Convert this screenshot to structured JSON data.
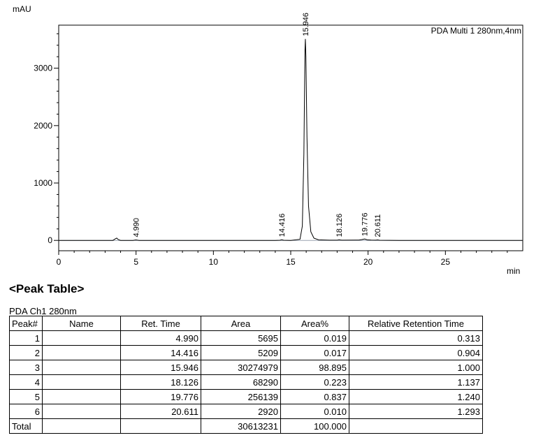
{
  "chart_data": {
    "type": "line",
    "title": "",
    "legend": "PDA Multi 1 280nm,4nm",
    "ylabel": "mAU",
    "xlabel": "min",
    "xlim": [
      0,
      30
    ],
    "ylim": [
      -180,
      3750
    ],
    "x_ticks": [
      0,
      5,
      10,
      15,
      20,
      25
    ],
    "y_ticks": [
      0,
      1000,
      2000,
      3000
    ],
    "grid": false,
    "legend_position": "top-right",
    "series": [
      {
        "x": [
          0,
          3.5,
          3.68,
          3.75,
          3.85,
          4.0,
          4.8,
          4.99,
          5.2,
          5.6,
          7.0,
          10.0,
          14.0,
          14.3,
          14.416,
          14.55,
          15.0,
          15.6,
          15.75,
          15.85,
          15.92,
          15.946,
          15.98,
          16.05,
          16.15,
          16.3,
          16.5,
          16.8,
          17.5,
          18.0,
          18.126,
          18.3,
          19.4,
          19.6,
          19.776,
          19.95,
          20.2,
          20.5,
          20.611,
          20.75,
          22.0,
          26.0,
          30.0
        ],
        "y": [
          0,
          0,
          30,
          40,
          15,
          0,
          0,
          8,
          0,
          0,
          0,
          0,
          0,
          3,
          12,
          2,
          0,
          20,
          250,
          1500,
          3300,
          3510,
          3200,
          1800,
          600,
          150,
          40,
          10,
          4,
          4,
          10,
          4,
          6,
          15,
          25,
          10,
          6,
          4,
          8,
          3,
          0,
          0,
          0
        ]
      }
    ],
    "peak_labels": [
      {
        "x": 4.99,
        "y": 8,
        "label": "4.990"
      },
      {
        "x": 14.416,
        "y": 12,
        "label": "14.416"
      },
      {
        "x": 15.946,
        "y": 3510,
        "label": "15.946"
      },
      {
        "x": 18.126,
        "y": 10,
        "label": "18.126"
      },
      {
        "x": 19.776,
        "y": 25,
        "label": "19.776"
      },
      {
        "x": 20.611,
        "y": 8,
        "label": "20.611"
      }
    ]
  },
  "peak_table": {
    "title": "<Peak Table>",
    "channel": "PDA Ch1 280nm",
    "headers": [
      "Peak#",
      "Name",
      "Ret. Time",
      "Area",
      "Area%",
      "Relative Retention Time"
    ],
    "rows": [
      {
        "peak": "1",
        "name": "",
        "ret_time": "4.990",
        "area": "5695",
        "area_pct": "0.019",
        "rrt": "0.313"
      },
      {
        "peak": "2",
        "name": "",
        "ret_time": "14.416",
        "area": "5209",
        "area_pct": "0.017",
        "rrt": "0.904"
      },
      {
        "peak": "3",
        "name": "",
        "ret_time": "15.946",
        "area": "30274979",
        "area_pct": "98.895",
        "rrt": "1.000"
      },
      {
        "peak": "4",
        "name": "",
        "ret_time": "18.126",
        "area": "68290",
        "area_pct": "0.223",
        "rrt": "1.137"
      },
      {
        "peak": "5",
        "name": "",
        "ret_time": "19.776",
        "area": "256139",
        "area_pct": "0.837",
        "rrt": "1.240"
      },
      {
        "peak": "6",
        "name": "",
        "ret_time": "20.611",
        "area": "2920",
        "area_pct": "0.010",
        "rrt": "1.293"
      }
    ],
    "total": {
      "label": "Total",
      "area": "30613231",
      "area_pct": "100.000"
    }
  }
}
